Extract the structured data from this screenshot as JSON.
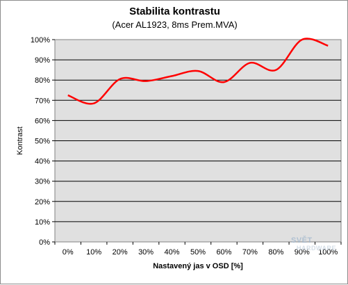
{
  "chart_data": {
    "type": "line",
    "title": "Stabilita kontrastu",
    "subtitle": "(Acer AL1923, 8ms Prem.MVA)",
    "xlabel": "Nastavený jas v OSD [%]",
    "ylabel": "Kontrast",
    "categories": [
      "0%",
      "10%",
      "20%",
      "30%",
      "40%",
      "50%",
      "60%",
      "70%",
      "80%",
      "90%",
      "100%"
    ],
    "series": [
      {
        "values": [
          72.5,
          68.5,
          80.5,
          79.5,
          82,
          84.5,
          79,
          88.5,
          85,
          100,
          97
        ],
        "color": "#ff0000"
      }
    ],
    "ylim": [
      0,
      100
    ],
    "yticks": [
      "0%",
      "10%",
      "20%",
      "30%",
      "40%",
      "50%",
      "60%",
      "70%",
      "80%",
      "90%",
      "100%"
    ],
    "grid": true,
    "plot_background": "#e0e0e0",
    "legend": "none"
  },
  "watermark": {
    "line1": "SVĚT",
    "line2": "HARDWARE"
  }
}
